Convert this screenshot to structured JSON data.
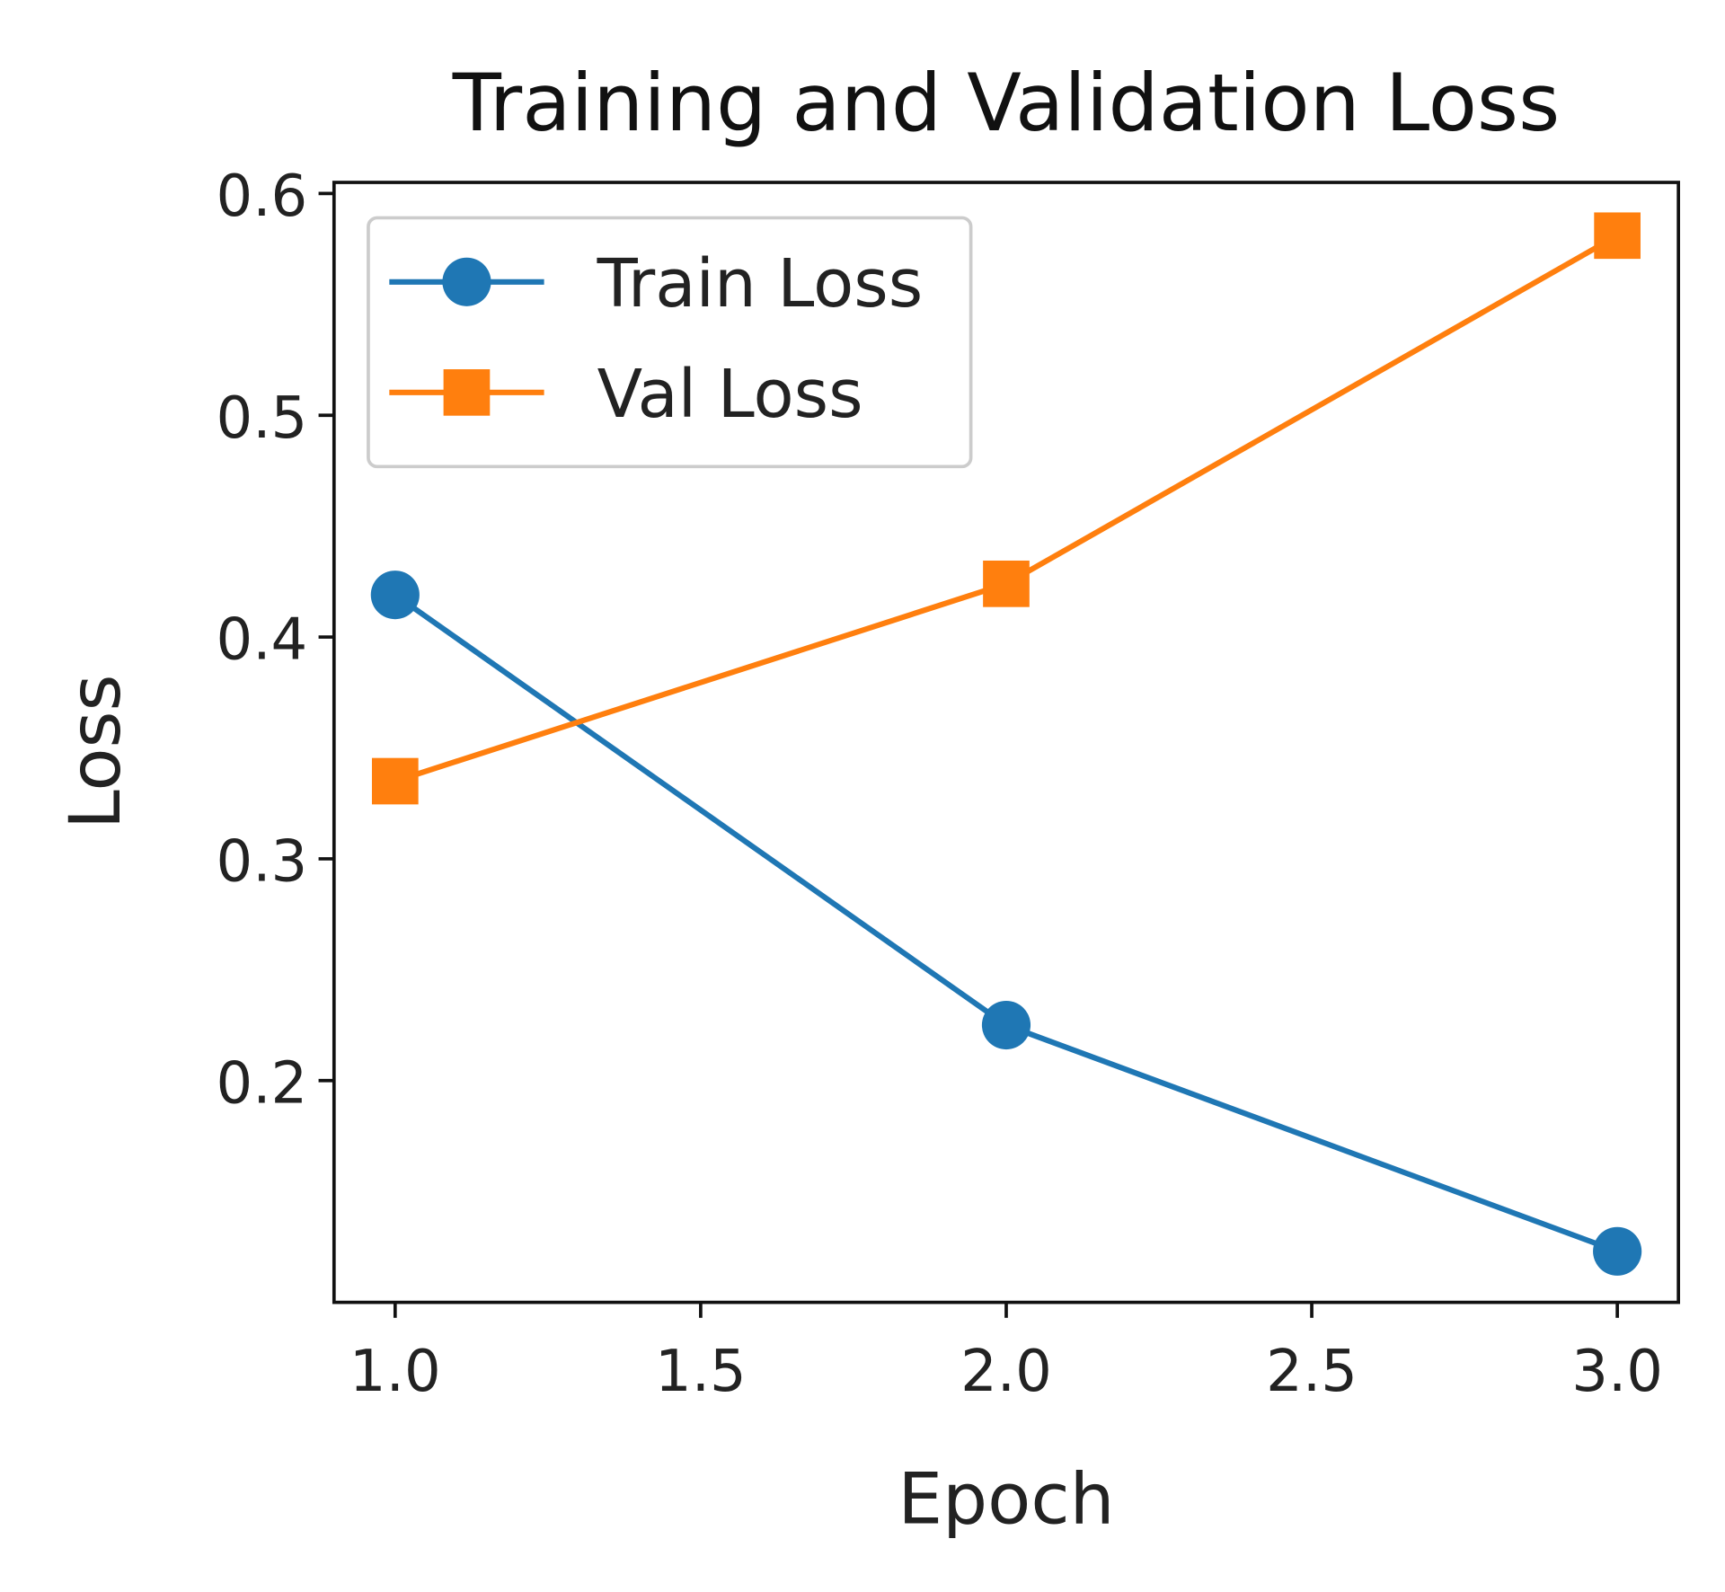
{
  "chart_data": {
    "type": "line",
    "title": "Training and Validation Loss",
    "xlabel": "Epoch",
    "ylabel": "Loss",
    "xlim": [
      0.9,
      3.1
    ],
    "ylim": [
      0.1,
      0.605
    ],
    "xticks": [
      1.0,
      1.5,
      2.0,
      2.5,
      3.0
    ],
    "xtick_labels": [
      "1.0",
      "1.5",
      "2.0",
      "2.5",
      "3.0"
    ],
    "yticks": [
      0.2,
      0.3,
      0.4,
      0.5,
      0.6
    ],
    "ytick_labels": [
      "0.2",
      "0.3",
      "0.4",
      "0.5",
      "0.6"
    ],
    "grid": false,
    "legend_position": "top-left",
    "x": [
      1.0,
      2.0,
      3.0
    ],
    "series": [
      {
        "name": "Train Loss",
        "values": [
          0.419,
          0.225,
          0.123
        ],
        "color": "#1f77b4",
        "marker": "circle"
      },
      {
        "name": "Val Loss",
        "values": [
          0.335,
          0.424,
          0.581
        ],
        "color": "#ff7f0e",
        "marker": "square"
      }
    ]
  }
}
